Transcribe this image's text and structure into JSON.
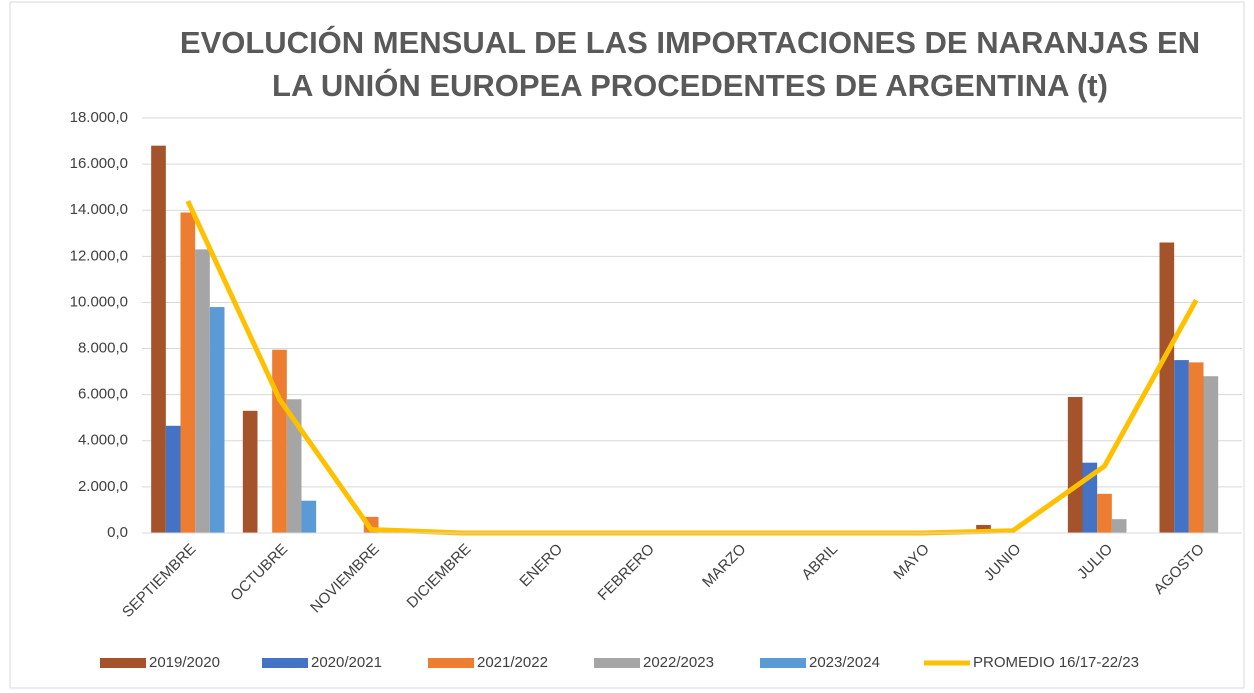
{
  "chart_data": {
    "type": "bar_line",
    "title": [
      "EVOLUCIÓN MENSUAL DE LAS IMPORTACIONES DE NARANJAS EN",
      "LA UNIÓN EUROPEA PROCEDENTES DE ARGENTINA (t)"
    ],
    "categories": [
      "SEPTIEMBRE",
      "OCTUBRE",
      "NOVIEMBRE",
      "DICIEMBRE",
      "ENERO",
      "FEBRERO",
      "MARZO",
      "ABRIL",
      "MAYO",
      "JUNIO",
      "JULIO",
      "AGOSTO"
    ],
    "series": [
      {
        "name": "2019/2020",
        "color": "#a5532a",
        "kind": "bar",
        "values": [
          16800,
          5300,
          0,
          0,
          0,
          0,
          0,
          0,
          0,
          350,
          5900,
          12600
        ]
      },
      {
        "name": "2020/2021",
        "color": "#4472c4",
        "kind": "bar",
        "values": [
          4650,
          0,
          0,
          0,
          0,
          0,
          0,
          0,
          0,
          0,
          3050,
          7500
        ]
      },
      {
        "name": "2021/2022",
        "color": "#ed7d31",
        "kind": "bar",
        "values": [
          13900,
          7950,
          700,
          0,
          0,
          0,
          0,
          0,
          0,
          0,
          1700,
          7400
        ]
      },
      {
        "name": "2022/2023",
        "color": "#a5a5a5",
        "kind": "bar",
        "values": [
          12300,
          5800,
          0,
          0,
          0,
          0,
          0,
          0,
          0,
          0,
          600,
          6800
        ]
      },
      {
        "name": "2023/2024",
        "color": "#5b9bd5",
        "kind": "bar",
        "values": [
          9800,
          1400,
          0,
          null,
          null,
          null,
          null,
          null,
          null,
          null,
          null,
          null
        ]
      },
      {
        "name": "PROMEDIO 16/17-22/23",
        "color": "#ffc000",
        "kind": "line",
        "values": [
          14400,
          5800,
          150,
          0,
          0,
          0,
          0,
          0,
          0,
          100,
          2900,
          10100
        ]
      }
    ],
    "ylim": [
      0,
      18000
    ],
    "yticks": [
      {
        "value": 0,
        "label": "0,0"
      },
      {
        "value": 2000,
        "label": "2.000,0"
      },
      {
        "value": 4000,
        "label": "4.000,0"
      },
      {
        "value": 6000,
        "label": "6.000,0"
      },
      {
        "value": 8000,
        "label": "8.000,0"
      },
      {
        "value": 10000,
        "label": "10.000,0"
      },
      {
        "value": 12000,
        "label": "12.000,0"
      },
      {
        "value": 14000,
        "label": "14.000,0"
      },
      {
        "value": 16000,
        "label": "16.000,0"
      },
      {
        "value": 18000,
        "label": "18.000,0"
      }
    ],
    "grid": true,
    "legend": "bottom"
  }
}
